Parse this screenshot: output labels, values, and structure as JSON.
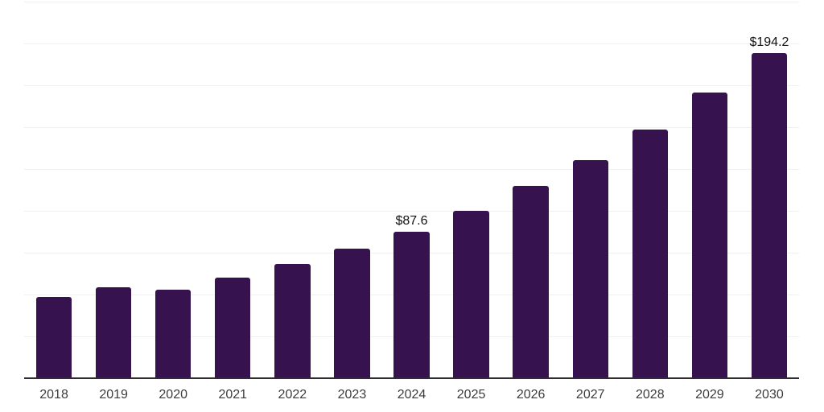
{
  "chart_data": {
    "type": "bar",
    "title": "",
    "xlabel": "",
    "ylabel": "",
    "categories": [
      "2018",
      "2019",
      "2020",
      "2021",
      "2022",
      "2023",
      "2024",
      "2025",
      "2026",
      "2027",
      "2028",
      "2029",
      "2030"
    ],
    "values": [
      48.6,
      54.5,
      52.9,
      60.2,
      68.3,
      77.4,
      87.6,
      100.2,
      114.9,
      130.3,
      148.6,
      170.5,
      194.2
    ],
    "value_labels": {
      "2024": "$87.6",
      "2030": "$194.2"
    },
    "ylim": [
      0,
      225
    ],
    "grid_step": 25,
    "grid": true,
    "legend": false,
    "bar_width_fraction": 0.6,
    "colors": {
      "bar": "#36124F",
      "gridline": "#F0F0F0",
      "axis": "#2E2E2E",
      "value_label": "#111111",
      "tick_label": "#3C3C3C",
      "background": "#FFFFFF"
    }
  }
}
